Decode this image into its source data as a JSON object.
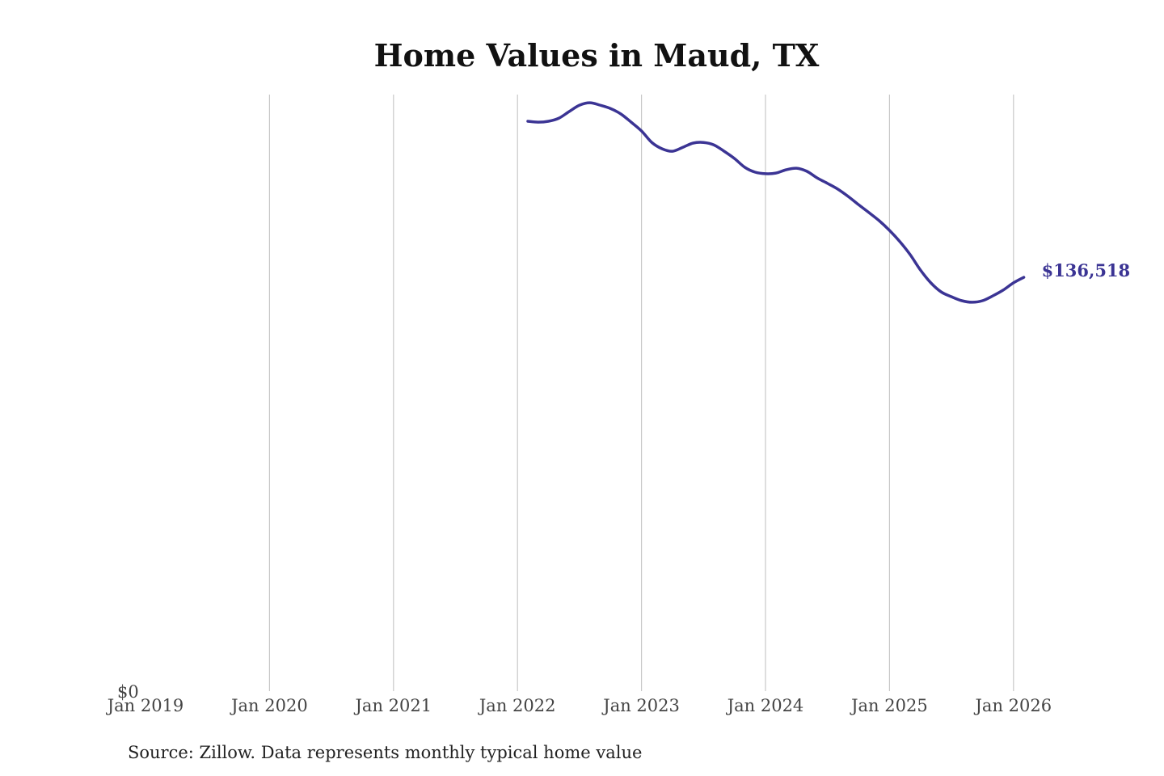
{
  "chart_data": {
    "type": "line",
    "title": "Home Values in Maud, TX",
    "source": "Source: Zillow. Data represents monthly typical home value",
    "xlabel": "",
    "ylabel": "",
    "x_ticks": [
      "Jan 2019",
      "Jan 2020",
      "Jan 2021",
      "Jan 2022",
      "Jan 2023",
      "Jan 2024",
      "Jan 2025",
      "Jan 2026"
    ],
    "y_ticks": [
      "$0"
    ],
    "xlim": [
      "2019-01",
      "2026-02"
    ],
    "ylim": [
      0,
      196800
    ],
    "grid": "vertical",
    "line_color": "#3b3494",
    "end_label": "$136,518",
    "series": [
      {
        "x": [
          "2022-02",
          "2022-03",
          "2022-04",
          "2022-05",
          "2022-06",
          "2022-07",
          "2022-08",
          "2022-09",
          "2022-10",
          "2022-11",
          "2022-12",
          "2023-01",
          "2023-02",
          "2023-03",
          "2023-04",
          "2023-05",
          "2023-06",
          "2023-07",
          "2023-08",
          "2023-09",
          "2023-10",
          "2023-11",
          "2023-12",
          "2024-01",
          "2024-02",
          "2024-03",
          "2024-04",
          "2024-05",
          "2024-06",
          "2024-07",
          "2024-08",
          "2024-09",
          "2024-10",
          "2024-11",
          "2024-12",
          "2025-01",
          "2025-02",
          "2025-03",
          "2025-04",
          "2025-05",
          "2025-06",
          "2025-07",
          "2025-08",
          "2025-09",
          "2025-10",
          "2025-11",
          "2025-12",
          "2026-01",
          "2026-02"
        ],
        "values": [
          188000,
          187700,
          188000,
          189000,
          191200,
          193300,
          194100,
          193300,
          192200,
          190400,
          187700,
          184800,
          181000,
          178900,
          178100,
          179400,
          180800,
          181000,
          180200,
          178100,
          175700,
          172800,
          171200,
          170700,
          170900,
          172000,
          172500,
          171500,
          169300,
          167500,
          165600,
          163200,
          160500,
          157900,
          155200,
          152000,
          148300,
          144000,
          138900,
          134700,
          131700,
          130100,
          128800,
          128300,
          128800,
          130400,
          132300,
          134700,
          136518
        ]
      }
    ]
  }
}
